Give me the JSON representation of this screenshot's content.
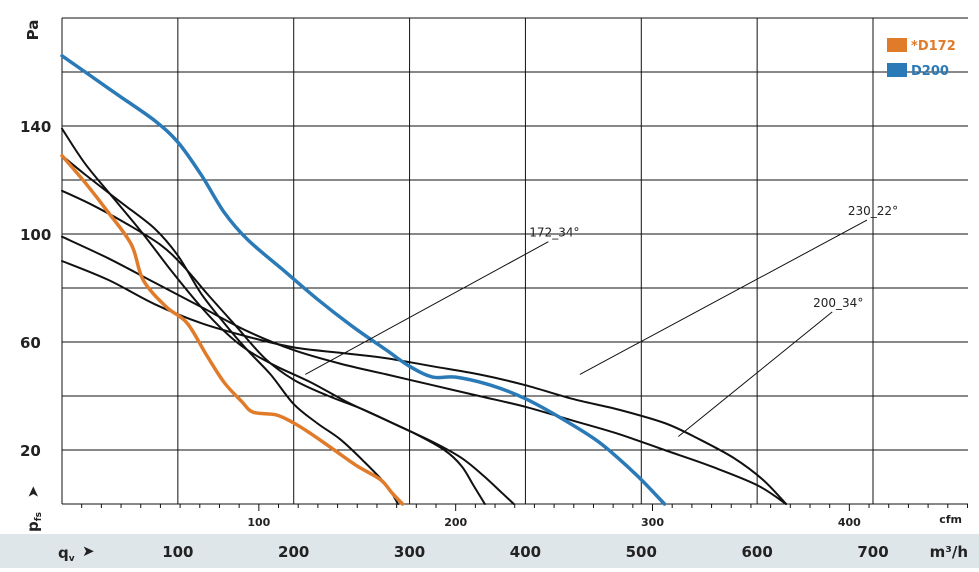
{
  "chart_data": {
    "type": "line",
    "title": "",
    "ylabel": "Pa",
    "ylabel_prefix": "p",
    "ylabel_sub": "fs",
    "xlabel_bottom_prefix": "q",
    "xlabel_bottom_sub": "v",
    "x_unit_bottom": "m³/h",
    "x_unit_top": "cfm",
    "ylim": [
      0,
      180
    ],
    "xlim_m3h": [
      0,
      782
    ],
    "y_ticks": [
      20,
      60,
      100,
      140
    ],
    "x_ticks_m3h": [
      100,
      200,
      300,
      400,
      500,
      600,
      700
    ],
    "x_ticks_cfm": [
      100,
      200,
      300,
      400
    ],
    "grid": true,
    "legend_position": "top-right",
    "legend": [
      {
        "name": "D172",
        "prefix": "*",
        "color": "#e07b2a"
      },
      {
        "name": "D200",
        "color": "#2b7ab8"
      }
    ],
    "annotations": [
      {
        "text": "172_34°",
        "at": [
          425,
          99
        ],
        "to": [
          210,
          48
        ]
      },
      {
        "text": "230_22°",
        "at": [
          700,
          107
        ],
        "to": [
          447,
          48
        ]
      },
      {
        "text": "200_34°",
        "at": [
          670,
          73
        ],
        "to": [
          532,
          25
        ]
      }
    ],
    "series": [
      {
        "name": "D172",
        "color": "#e07b2a",
        "width": 3.5,
        "points": [
          [
            0,
            129
          ],
          [
            20,
            119
          ],
          [
            40,
            108
          ],
          [
            60,
            96
          ],
          [
            70,
            83
          ],
          [
            90,
            73
          ],
          [
            108,
            67
          ],
          [
            125,
            55
          ],
          [
            140,
            45
          ],
          [
            155,
            38
          ],
          [
            165,
            34
          ],
          [
            185,
            33
          ],
          [
            200,
            30
          ],
          [
            215,
            26
          ],
          [
            235,
            20
          ],
          [
            255,
            14
          ],
          [
            275,
            9
          ],
          [
            285,
            4
          ],
          [
            294,
            0
          ]
        ]
      },
      {
        "name": "D200",
        "color": "#2b7ab8",
        "width": 3.5,
        "points": [
          [
            0,
            166
          ],
          [
            20,
            160
          ],
          [
            50,
            151
          ],
          [
            80,
            142
          ],
          [
            100,
            134
          ],
          [
            120,
            122
          ],
          [
            140,
            108
          ],
          [
            160,
            98
          ],
          [
            190,
            87
          ],
          [
            220,
            76
          ],
          [
            250,
            66
          ],
          [
            280,
            57
          ],
          [
            300,
            51
          ],
          [
            320,
            47
          ],
          [
            340,
            47
          ],
          [
            370,
            44
          ],
          [
            400,
            39
          ],
          [
            430,
            32
          ],
          [
            460,
            24
          ],
          [
            480,
            17
          ],
          [
            500,
            9
          ],
          [
            520,
            0
          ]
        ]
      },
      {
        "name": "",
        "color": "#111111",
        "width": 2,
        "points": [
          [
            0,
            139
          ],
          [
            20,
            126
          ],
          [
            45,
            113
          ],
          [
            70,
            100
          ],
          [
            95,
            86
          ],
          [
            120,
            73
          ],
          [
            140,
            64
          ],
          [
            160,
            57
          ],
          [
            185,
            51
          ],
          [
            215,
            45
          ],
          [
            245,
            38
          ],
          [
            275,
            32
          ],
          [
            305,
            26
          ],
          [
            330,
            20
          ],
          [
            345,
            14
          ],
          [
            355,
            7
          ],
          [
            365,
            0
          ]
        ]
      },
      {
        "name": "",
        "color": "#111111",
        "width": 2,
        "points": [
          [
            0,
            129
          ],
          [
            20,
            122
          ],
          [
            50,
            112
          ],
          [
            80,
            102
          ],
          [
            100,
            92
          ],
          [
            120,
            78
          ],
          [
            140,
            67
          ],
          [
            160,
            57
          ],
          [
            180,
            48
          ],
          [
            200,
            37
          ],
          [
            220,
            30
          ],
          [
            240,
            24
          ],
          [
            260,
            16
          ],
          [
            280,
            7
          ],
          [
            290,
            0
          ]
        ]
      },
      {
        "name": "",
        "color": "#111111",
        "width": 2,
        "points": [
          [
            0,
            116
          ],
          [
            25,
            111
          ],
          [
            55,
            104
          ],
          [
            85,
            96
          ],
          [
            105,
            88
          ],
          [
            125,
            78
          ],
          [
            150,
            66
          ],
          [
            175,
            54
          ],
          [
            200,
            46
          ],
          [
            230,
            40
          ],
          [
            260,
            35
          ],
          [
            290,
            29
          ],
          [
            320,
            23
          ],
          [
            345,
            17
          ],
          [
            365,
            10
          ],
          [
            380,
            4
          ],
          [
            390,
            0
          ]
        ]
      },
      {
        "name": "",
        "color": "#111111",
        "width": 2,
        "points": [
          [
            0,
            99
          ],
          [
            40,
            91
          ],
          [
            80,
            82
          ],
          [
            120,
            73
          ],
          [
            160,
            64
          ],
          [
            200,
            57
          ],
          [
            240,
            52
          ],
          [
            280,
            48
          ],
          [
            320,
            44
          ],
          [
            360,
            40
          ],
          [
            400,
            36
          ],
          [
            440,
            31
          ],
          [
            480,
            26
          ],
          [
            520,
            20
          ],
          [
            560,
            14
          ],
          [
            600,
            7
          ],
          [
            625,
            0
          ]
        ]
      },
      {
        "name": "",
        "color": "#111111",
        "width": 2,
        "points": [
          [
            0,
            90
          ],
          [
            40,
            83
          ],
          [
            80,
            74
          ],
          [
            120,
            67
          ],
          [
            160,
            62
          ],
          [
            200,
            58
          ],
          [
            240,
            56
          ],
          [
            280,
            54
          ],
          [
            320,
            51
          ],
          [
            360,
            48
          ],
          [
            400,
            44
          ],
          [
            440,
            39
          ],
          [
            480,
            35
          ],
          [
            520,
            30
          ],
          [
            550,
            24
          ],
          [
            580,
            17
          ],
          [
            605,
            9
          ],
          [
            625,
            0
          ]
        ]
      },
      {
        "name": "",
        "color": "#111111",
        "width": 2,
        "points": [
          [
            0,
            0
          ]
        ]
      }
    ]
  }
}
